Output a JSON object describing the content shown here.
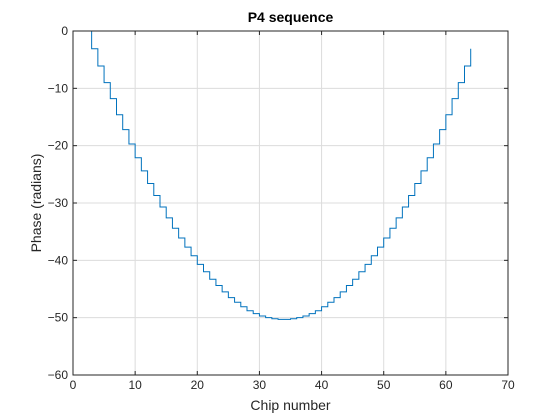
{
  "chart_data": {
    "type": "line",
    "step": "stairs",
    "title": "P4 sequence",
    "xlabel": "Chip number",
    "ylabel": "Phase (radians)",
    "xlim": [
      0,
      70
    ],
    "ylim": [
      -60,
      0
    ],
    "xticks": [
      0,
      10,
      20,
      30,
      40,
      50,
      60,
      70
    ],
    "yticks": [
      0,
      -10,
      -20,
      -30,
      -40,
      -50,
      -60
    ],
    "xtick_labels": [
      "0",
      "10",
      "20",
      "30",
      "40",
      "50",
      "60",
      "70"
    ],
    "ytick_labels": [
      "0",
      "−10",
      "−20",
      "−30",
      "−40",
      "−50",
      "−60"
    ],
    "grid": true,
    "box": true,
    "series": [
      {
        "color": "#0072BD",
        "x": [
          2,
          3,
          4,
          5,
          6,
          7,
          8,
          9,
          10,
          11,
          12,
          13,
          14,
          15,
          16,
          17,
          18,
          19,
          20,
          21,
          22,
          23,
          24,
          25,
          26,
          27,
          28,
          29,
          30,
          31,
          32,
          33,
          34,
          35,
          36,
          37,
          38,
          39,
          40,
          41,
          42,
          43,
          44,
          45,
          46,
          47,
          48,
          49,
          50,
          51,
          52,
          53,
          54,
          55,
          56,
          57,
          58,
          59,
          60,
          61,
          62,
          63,
          64
        ],
        "y": [
          0,
          -3.1,
          -6.1,
          -9.0,
          -11.8,
          -14.6,
          -17.2,
          -19.7,
          -22.1,
          -24.4,
          -26.6,
          -28.7,
          -30.7,
          -32.6,
          -34.4,
          -36.1,
          -37.7,
          -39.2,
          -40.7,
          -42.0,
          -43.3,
          -44.4,
          -45.5,
          -46.5,
          -47.3,
          -48.1,
          -48.8,
          -49.3,
          -49.7,
          -50.0,
          -50.2,
          -50.3,
          -50.3,
          -50.2,
          -50.0,
          -49.7,
          -49.3,
          -48.8,
          -48.1,
          -47.3,
          -46.5,
          -45.5,
          -44.4,
          -43.3,
          -42.0,
          -40.7,
          -39.2,
          -37.7,
          -36.1,
          -34.4,
          -32.6,
          -30.7,
          -28.7,
          -26.6,
          -24.4,
          -22.1,
          -19.7,
          -17.2,
          -14.6,
          -11.8,
          -9.0,
          -6.1,
          -3.1
        ]
      }
    ]
  }
}
